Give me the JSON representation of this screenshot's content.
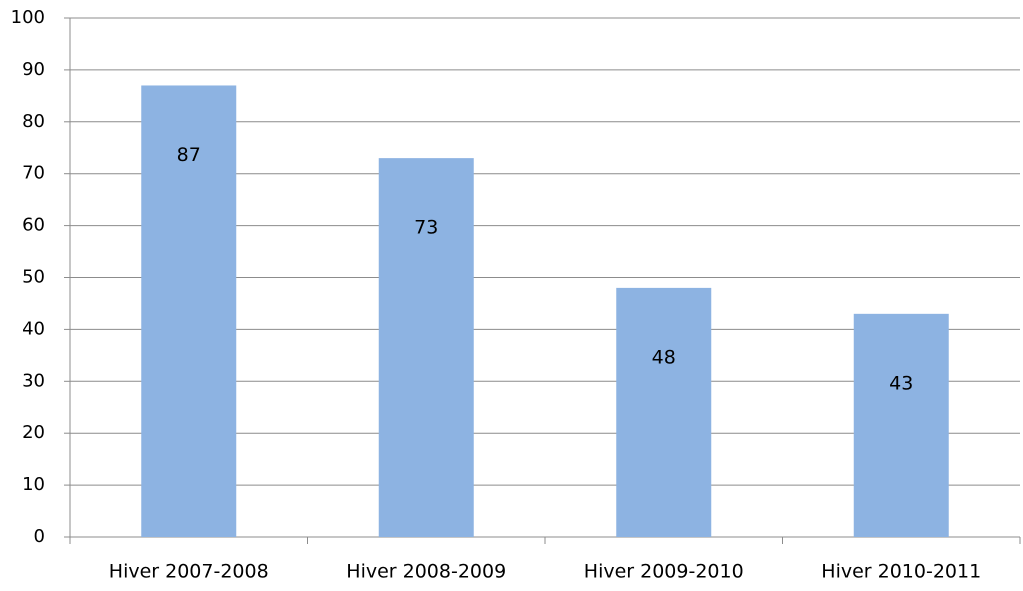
{
  "chart_data": {
    "type": "bar",
    "categories": [
      "Hiver 2007-2008",
      "Hiver 2008-2009",
      "Hiver 2009-2010",
      "Hiver 2010-2011"
    ],
    "values": [
      87,
      73,
      48,
      43
    ],
    "color": "#8db3e2",
    "ylim": [
      0,
      100
    ],
    "yticks": [
      0,
      10,
      20,
      30,
      40,
      50,
      60,
      70,
      80,
      90,
      100
    ],
    "grid": true,
    "data_labels": true
  }
}
